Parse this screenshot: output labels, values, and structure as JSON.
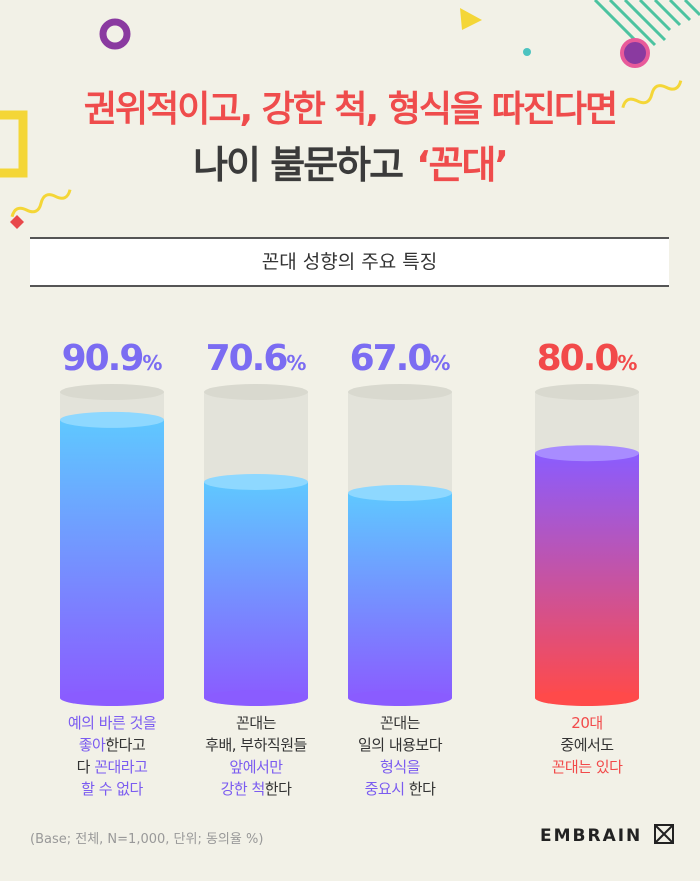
{
  "title_line1": "권위적이고, 강한 척, 형식을 따진다면",
  "title_line2_main": "나이 불문하고",
  "title_line2_accent": "‘꼰대’",
  "subtitle": "꼰대 성향의 주요 특징",
  "chart_data": {
    "type": "bar",
    "title": "꼰대 성향의 주요 특징",
    "unit": "%",
    "ylim": [
      0,
      100
    ],
    "categories": [
      "예의 바른 것을 좋아한다고 다 꼰대라고 할 수 없다",
      "꼰대는 후배, 부하직원들 앞에서만 강한 척한다",
      "꼰대는 일의 내용보다 형식을 중요시 한다",
      "20대 중에서도 꼰대는 있다"
    ],
    "values": [
      90.9,
      70.6,
      67.0,
      80.0
    ],
    "value_labels": [
      "90.9",
      "70.6",
      "67.0",
      "80.0"
    ],
    "value_colors": [
      "#7b6cf2",
      "#7b6cf2",
      "#7b6cf2",
      "#f24a4a"
    ]
  },
  "labels": [
    {
      "lines": [
        [
          {
            "t": "예의 바른 것을",
            "c": "hl-purple"
          }
        ],
        [
          {
            "t": "좋아",
            "c": "hl-purple"
          },
          {
            "t": "한다고",
            "c": ""
          }
        ],
        [
          {
            "t": "다 ",
            "c": ""
          },
          {
            "t": "꼰대라고",
            "c": "hl-purple"
          }
        ],
        [
          {
            "t": "할 수 없다",
            "c": "hl-purple"
          }
        ]
      ]
    },
    {
      "lines": [
        [
          {
            "t": "꼰대는",
            "c": ""
          }
        ],
        [
          {
            "t": "후배, 부하직원들",
            "c": ""
          }
        ],
        [
          {
            "t": "앞에서만",
            "c": "hl-purple"
          }
        ],
        [
          {
            "t": "강한 척",
            "c": "hl-purple"
          },
          {
            "t": "한다",
            "c": ""
          }
        ]
      ]
    },
    {
      "lines": [
        [
          {
            "t": "꼰대는",
            "c": ""
          }
        ],
        [
          {
            "t": "일의 내용보다",
            "c": ""
          }
        ],
        [
          {
            "t": "형식을",
            "c": "hl-purple"
          }
        ],
        [
          {
            "t": "중요시",
            "c": "hl-purple"
          },
          {
            "t": " 한다",
            "c": ""
          }
        ]
      ]
    },
    {
      "lines": [
        [
          {
            "t": "20대",
            "c": "hl-red"
          }
        ],
        [
          {
            "t": "중에서도",
            "c": ""
          }
        ],
        [
          {
            "t": "꼰대는 있다",
            "c": "hl-red"
          }
        ]
      ]
    }
  ],
  "footnote": "(Base; 전체, N=1,000, 단위; 동의율 %)",
  "brand": "EMBRAIN",
  "brand_icon": "embrain-logo-icon"
}
